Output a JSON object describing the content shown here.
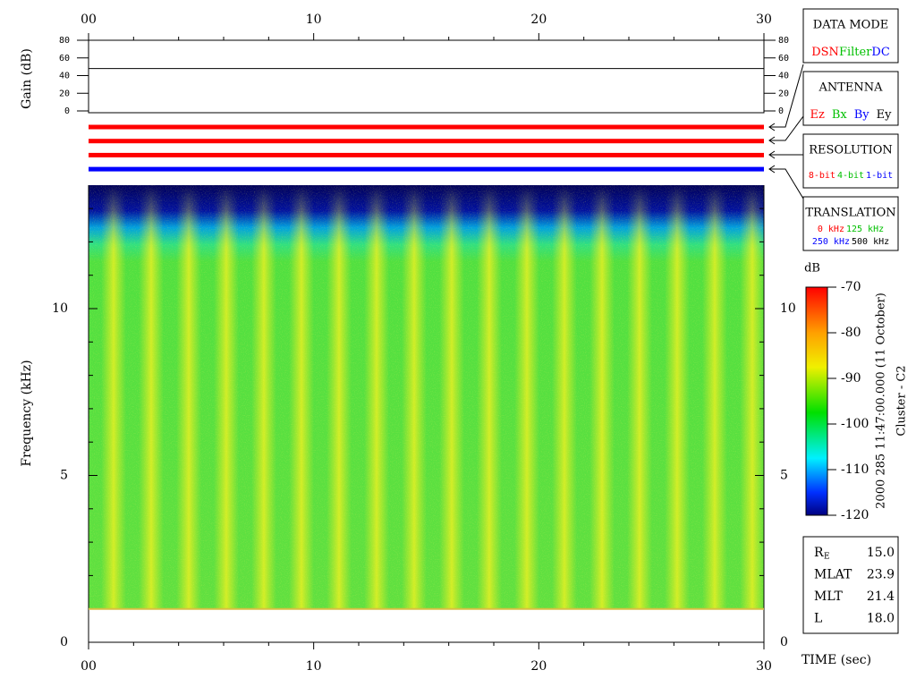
{
  "time_axis": {
    "ticks": [
      "00",
      "10",
      "20",
      "30"
    ],
    "label": "TIME (sec)"
  },
  "gain_panel": {
    "ylabel": "Gain (dB)",
    "yticks": [
      0,
      20,
      40,
      60,
      80
    ],
    "ylim": [
      0,
      80
    ],
    "level": 48
  },
  "status_bars": [
    {
      "color": "#ff0000"
    },
    {
      "color": "#ff0000"
    },
    {
      "color": "#ff0000"
    },
    {
      "color": "#0000ff"
    }
  ],
  "spectrogram": {
    "ylabel": "Frequency (kHz)",
    "yticks": [
      0,
      5,
      10
    ],
    "cutoff": 1
  },
  "legend": {
    "data_mode": {
      "title": "DATA MODE",
      "items": [
        {
          "text": "DSN",
          "color": "#ff0000"
        },
        {
          "text": "Filter",
          "color": "#00c000"
        },
        {
          "text": "DC",
          "color": "#0000ff"
        }
      ]
    },
    "antenna": {
      "title": "ANTENNA",
      "items": [
        {
          "text": "Ez",
          "color": "#ff0000"
        },
        {
          "text": "Bx",
          "color": "#00c000"
        },
        {
          "text": "By",
          "color": "#0000ff"
        },
        {
          "text": "Ey",
          "color": "#000000"
        }
      ]
    },
    "resolution": {
      "title": "RESOLUTION",
      "items": [
        {
          "text": "8-bit",
          "color": "#ff0000"
        },
        {
          "text": "4-bit",
          "color": "#00c000"
        },
        {
          "text": "1-bit",
          "color": "#0000ff"
        }
      ]
    },
    "translation": {
      "title": "TRANSLATION",
      "items": [
        {
          "text": "0 kHz",
          "color": "#ff0000"
        },
        {
          "text": "125 kHz",
          "color": "#00c000"
        },
        {
          "text": "250 kHz",
          "color": "#0000ff"
        },
        {
          "text": "500 kHz",
          "color": "#000000"
        }
      ]
    }
  },
  "colorbar": {
    "unit": "dB",
    "ticks": [
      -70,
      -80,
      -90,
      -100,
      -110,
      -120
    ],
    "lim": [
      -120,
      -70
    ]
  },
  "timestamp": "2000 285 11:47:00.000 (11 October)",
  "spacecraft": "Cluster - C2",
  "ephemeris": [
    {
      "label": "R",
      "sub": "E",
      "value": "15.0"
    },
    {
      "label": "MLAT",
      "value": "23.9"
    },
    {
      "label": "MLT",
      "value": "21.4"
    },
    {
      "label": "L",
      "value": "18.0"
    }
  ]
}
